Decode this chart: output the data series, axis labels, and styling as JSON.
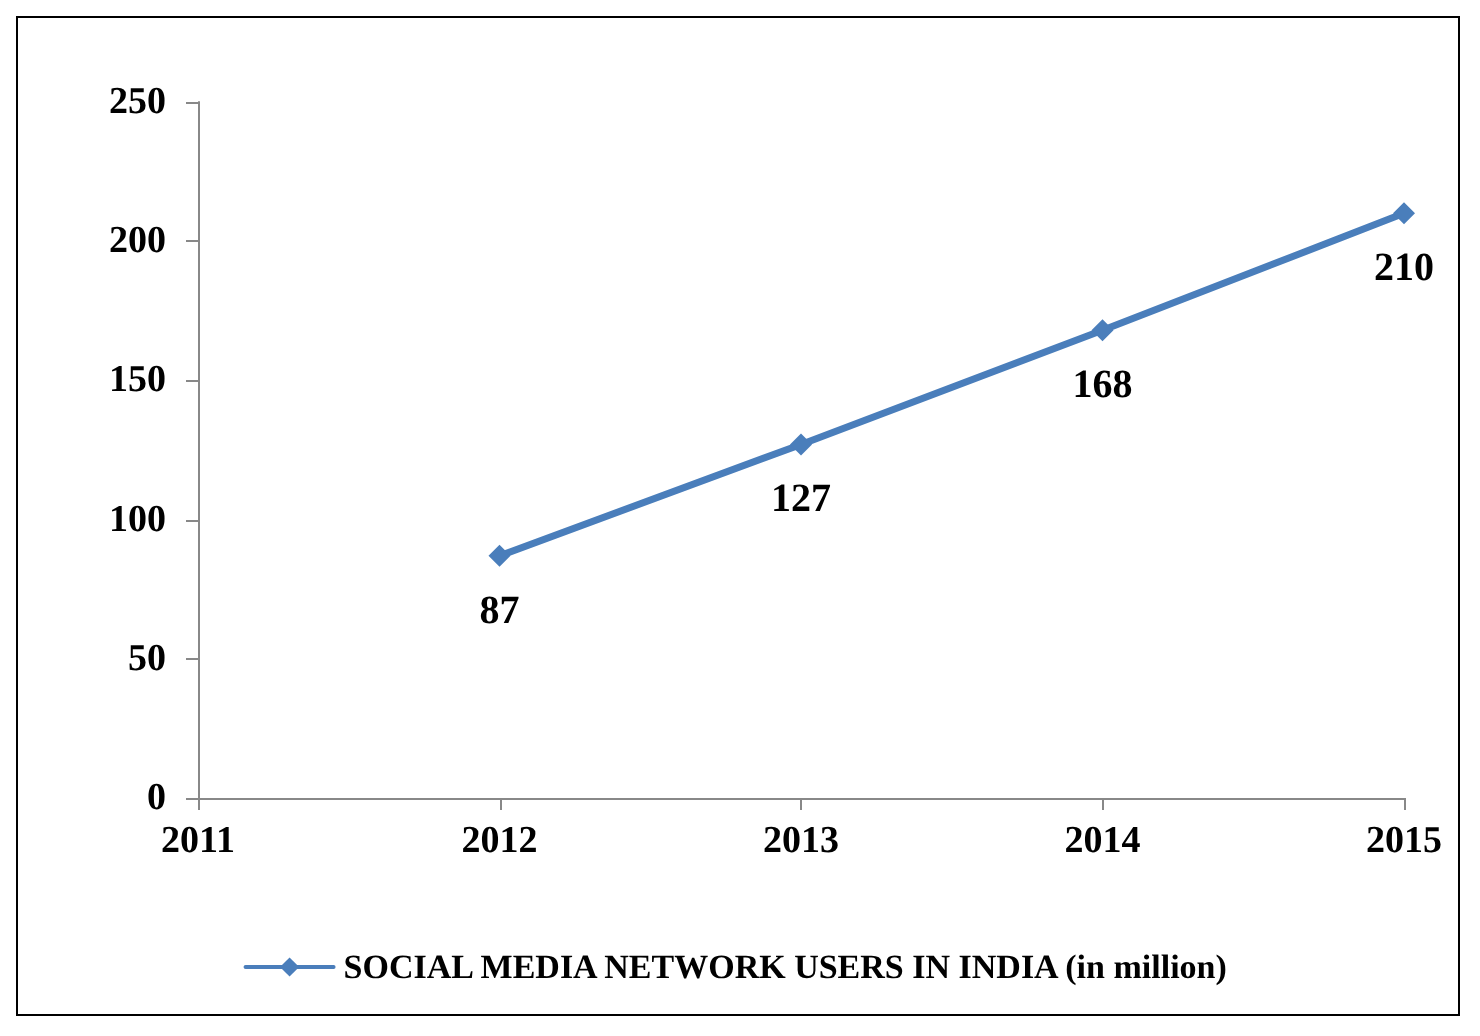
{
  "chart_data": {
    "type": "line",
    "x": [
      2012,
      2013,
      2014,
      2015
    ],
    "series": [
      {
        "name": "SOCIAL MEDIA NETWORK USERS IN INDIA (in million)",
        "color": "#4a7ebb",
        "values": [
          87,
          127,
          168,
          210
        ]
      }
    ],
    "xlim": [
      2011,
      2015
    ],
    "xticks": [
      2011,
      2012,
      2013,
      2014,
      2015
    ],
    "ylim": [
      0,
      250
    ],
    "yticks": [
      0,
      50,
      100,
      150,
      200,
      250
    ],
    "data_labels": true,
    "legend": "bottom",
    "marker": "diamond",
    "line_style": "solid",
    "grid": false
  }
}
